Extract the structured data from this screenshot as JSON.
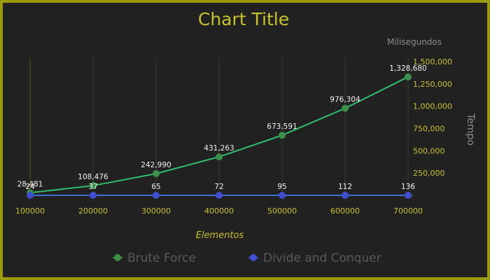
{
  "chart_data": {
    "type": "line",
    "title": "Chart Title",
    "xlabel": "Elementos",
    "ylabel": "Tempo",
    "ylabel_top": "Milisegundos",
    "x": [
      100000,
      200000,
      300000,
      400000,
      500000,
      600000,
      700000
    ],
    "x_tick_labels": [
      "100000",
      "200000",
      "300000",
      "400000",
      "500000",
      "600000",
      "700000"
    ],
    "ylim": [
      0,
      1500000
    ],
    "y_ticks": [
      250000,
      500000,
      750000,
      1000000,
      1250000,
      1500000
    ],
    "y_tick_labels": [
      "250,000",
      "500,000",
      "750,000",
      "1,000,000",
      "1,250,000",
      "1,500,000"
    ],
    "y_axis_position": "right",
    "grid": "vertical",
    "legend_position": "bottom",
    "series": [
      {
        "name": "Brute Force",
        "color": "#2fbf6a",
        "marker_color": "#3c8f4a",
        "values": [
          28481,
          108476,
          242990,
          431263,
          673591,
          976304,
          1328680
        ],
        "labels": [
          "28,481",
          "108,476",
          "242,990",
          "431,263",
          "673,591",
          "976,304",
          "1,328,680"
        ]
      },
      {
        "name": "Divide and Conquer",
        "color": "#3a6fd8",
        "marker_color": "#3f4fd0",
        "values": [
          24,
          37,
          65,
          72,
          95,
          112,
          136
        ],
        "labels": [
          "24",
          "37",
          "65",
          "72",
          "95",
          "112",
          "136"
        ]
      }
    ]
  }
}
